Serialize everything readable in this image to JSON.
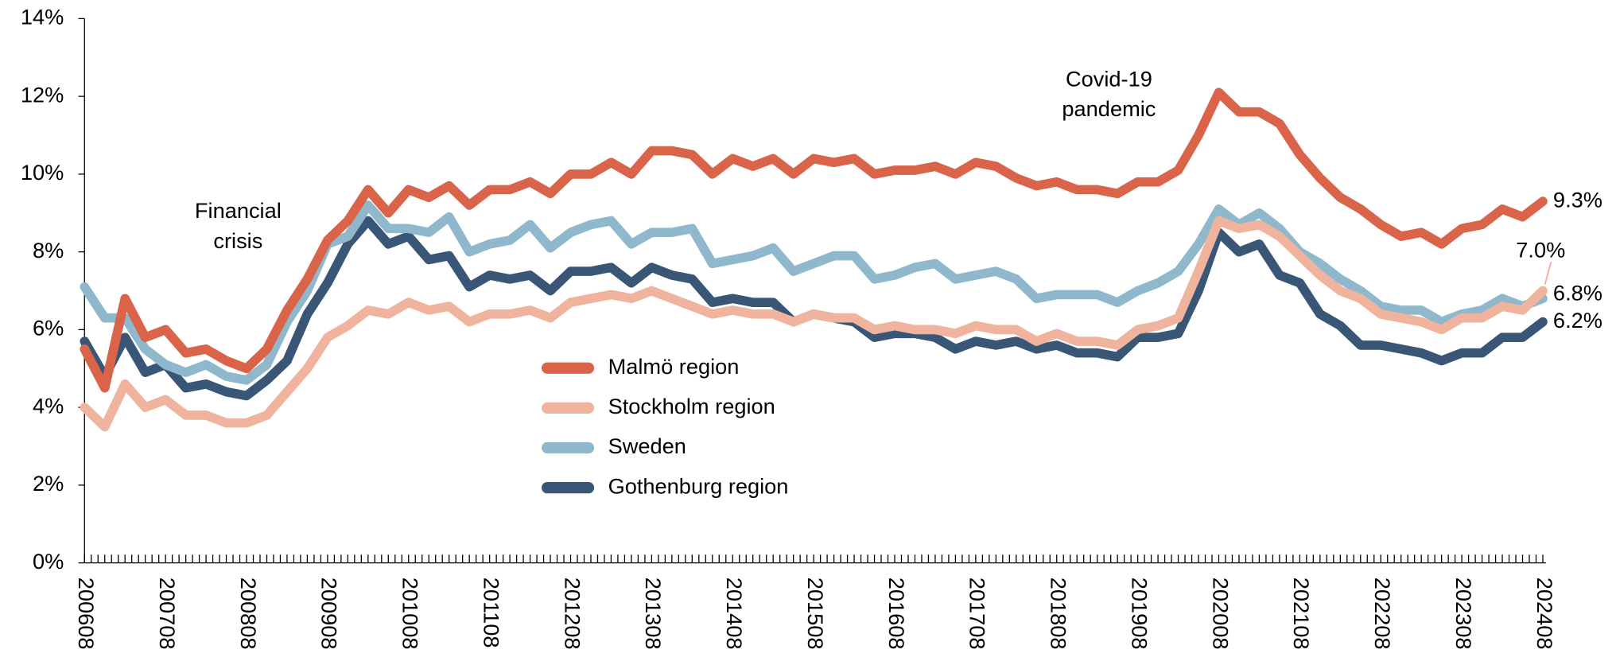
{
  "chart_data": {
    "type": "line",
    "categories": [
      "200608",
      null,
      null,
      null,
      "200708",
      null,
      null,
      null,
      "200808",
      null,
      null,
      null,
      "200908",
      null,
      null,
      null,
      "201008",
      null,
      null,
      null,
      "201108",
      null,
      null,
      null,
      "201208",
      null,
      null,
      null,
      "201308",
      null,
      null,
      null,
      "201408",
      null,
      null,
      null,
      "201508",
      null,
      null,
      null,
      "201608",
      null,
      null,
      null,
      "201708",
      null,
      null,
      null,
      "201808",
      null,
      null,
      null,
      "201908",
      null,
      null,
      null,
      "202008",
      null,
      null,
      null,
      "202108",
      null,
      null,
      null,
      "202208",
      null,
      null,
      null,
      "202308",
      null,
      null,
      null,
      "202408"
    ],
    "series": [
      {
        "name": "Malmö region",
        "color": "#d9644a",
        "values": [
          5.5,
          4.5,
          6.8,
          5.8,
          6.0,
          5.4,
          5.5,
          5.2,
          5.0,
          5.5,
          6.5,
          7.3,
          8.3,
          8.8,
          9.6,
          9.0,
          9.6,
          9.4,
          9.7,
          9.2,
          9.6,
          9.6,
          9.8,
          9.5,
          10.0,
          10.0,
          10.3,
          10.0,
          10.6,
          10.6,
          10.5,
          10.0,
          10.4,
          10.2,
          10.4,
          10.0,
          10.4,
          10.3,
          10.4,
          10.0,
          10.1,
          10.1,
          10.2,
          10.0,
          10.3,
          10.2,
          9.9,
          9.7,
          9.8,
          9.6,
          9.6,
          9.5,
          9.8,
          9.8,
          10.1,
          11.0,
          12.1,
          11.6,
          11.6,
          11.3,
          10.5,
          9.9,
          9.4,
          9.1,
          8.7,
          8.4,
          8.5,
          8.2,
          8.6,
          8.7,
          9.1,
          8.9,
          9.3
        ],
        "value_labels": [
          null,
          null,
          null,
          null,
          null,
          null,
          null,
          null,
          null,
          null,
          null,
          null,
          null,
          null,
          null,
          null,
          null,
          null,
          null,
          null,
          null,
          null,
          null,
          null,
          null,
          null,
          null,
          null,
          null,
          null,
          null,
          null,
          null,
          null,
          null,
          null,
          null,
          null,
          null,
          null,
          null,
          null,
          null,
          null,
          null,
          null,
          null,
          null,
          null,
          null,
          null,
          null,
          null,
          null,
          null,
          null,
          null,
          null,
          null,
          null,
          null,
          null,
          null,
          null,
          null,
          null,
          null,
          null,
          null,
          null,
          null,
          null,
          "9.3%"
        ]
      },
      {
        "name": "Stockholm region",
        "color": "#f0b49e",
        "values": [
          4.0,
          3.5,
          4.6,
          4.0,
          4.2,
          3.8,
          3.8,
          3.6,
          3.6,
          3.8,
          4.4,
          5.0,
          5.8,
          6.1,
          6.5,
          6.4,
          6.7,
          6.5,
          6.6,
          6.2,
          6.4,
          6.4,
          6.5,
          6.3,
          6.7,
          6.8,
          6.9,
          6.8,
          7.0,
          6.8,
          6.6,
          6.4,
          6.5,
          6.4,
          6.4,
          6.2,
          6.4,
          6.3,
          6.3,
          6.0,
          6.1,
          6.0,
          6.0,
          5.9,
          6.1,
          6.0,
          6.0,
          5.7,
          5.9,
          5.7,
          5.7,
          5.6,
          6.0,
          6.1,
          6.3,
          7.5,
          8.8,
          8.6,
          8.7,
          8.4,
          7.9,
          7.4,
          7.0,
          6.8,
          6.4,
          6.3,
          6.2,
          6.0,
          6.3,
          6.3,
          6.6,
          6.5,
          7.0
        ],
        "value_labels": [
          null,
          null,
          null,
          null,
          null,
          null,
          null,
          null,
          null,
          null,
          null,
          null,
          null,
          null,
          null,
          null,
          null,
          null,
          null,
          null,
          null,
          null,
          null,
          null,
          null,
          null,
          null,
          null,
          null,
          null,
          null,
          null,
          null,
          null,
          null,
          null,
          null,
          null,
          null,
          null,
          null,
          null,
          null,
          null,
          null,
          null,
          null,
          null,
          null,
          null,
          null,
          null,
          null,
          null,
          null,
          null,
          null,
          null,
          null,
          null,
          null,
          null,
          null,
          null,
          null,
          null,
          null,
          null,
          null,
          null,
          null,
          null,
          "7.0%"
        ]
      },
      {
        "name": "Sweden",
        "color": "#8fb8cc",
        "values": [
          7.1,
          6.3,
          6.3,
          5.5,
          5.1,
          4.9,
          5.1,
          4.8,
          4.7,
          5.1,
          6.2,
          7.0,
          8.2,
          8.4,
          9.2,
          8.6,
          8.6,
          8.5,
          8.9,
          8.0,
          8.2,
          8.3,
          8.7,
          8.1,
          8.5,
          8.7,
          8.8,
          8.2,
          8.5,
          8.5,
          8.6,
          7.7,
          7.8,
          7.9,
          8.1,
          7.5,
          7.7,
          7.9,
          7.9,
          7.3,
          7.4,
          7.6,
          7.7,
          7.3,
          7.4,
          7.5,
          7.3,
          6.8,
          6.9,
          6.9,
          6.9,
          6.7,
          7.0,
          7.2,
          7.5,
          8.2,
          9.1,
          8.7,
          9.0,
          8.6,
          8.0,
          7.7,
          7.3,
          7.0,
          6.6,
          6.5,
          6.5,
          6.2,
          6.4,
          6.5,
          6.8,
          6.6,
          6.8
        ],
        "value_labels": [
          null,
          null,
          null,
          null,
          null,
          null,
          null,
          null,
          null,
          null,
          null,
          null,
          null,
          null,
          null,
          null,
          null,
          null,
          null,
          null,
          null,
          null,
          null,
          null,
          null,
          null,
          null,
          null,
          null,
          null,
          null,
          null,
          null,
          null,
          null,
          null,
          null,
          null,
          null,
          null,
          null,
          null,
          null,
          null,
          null,
          null,
          null,
          null,
          null,
          null,
          null,
          null,
          null,
          null,
          null,
          null,
          null,
          null,
          null,
          null,
          null,
          null,
          null,
          null,
          null,
          null,
          null,
          null,
          null,
          null,
          null,
          null,
          "6.8%"
        ]
      },
      {
        "name": "Gothenburg region",
        "color": "#3a5677",
        "values": [
          5.7,
          4.8,
          5.8,
          4.9,
          5.1,
          4.5,
          4.6,
          4.4,
          4.3,
          4.7,
          5.2,
          6.4,
          7.2,
          8.2,
          8.8,
          8.2,
          8.4,
          7.8,
          7.9,
          7.1,
          7.4,
          7.3,
          7.4,
          7.0,
          7.5,
          7.5,
          7.6,
          7.2,
          7.6,
          7.4,
          7.3,
          6.7,
          6.8,
          6.7,
          6.7,
          6.2,
          6.4,
          6.3,
          6.2,
          5.8,
          5.9,
          5.9,
          5.8,
          5.5,
          5.7,
          5.6,
          5.7,
          5.5,
          5.6,
          5.4,
          5.4,
          5.3,
          5.8,
          5.8,
          5.9,
          7.0,
          8.5,
          8.0,
          8.2,
          7.4,
          7.2,
          6.4,
          6.1,
          5.6,
          5.6,
          5.5,
          5.4,
          5.2,
          5.4,
          5.4,
          5.8,
          5.8,
          6.2
        ],
        "value_labels": [
          null,
          null,
          null,
          null,
          null,
          null,
          null,
          null,
          null,
          null,
          null,
          null,
          null,
          null,
          null,
          null,
          null,
          null,
          null,
          null,
          null,
          null,
          null,
          null,
          null,
          null,
          null,
          null,
          null,
          null,
          null,
          null,
          null,
          null,
          null,
          null,
          null,
          null,
          null,
          null,
          null,
          null,
          null,
          null,
          null,
          null,
          null,
          null,
          null,
          null,
          null,
          null,
          null,
          null,
          null,
          null,
          null,
          null,
          null,
          null,
          null,
          null,
          null,
          null,
          null,
          null,
          null,
          null,
          null,
          null,
          null,
          null,
          "6.2%"
        ]
      }
    ],
    "ylim": [
      0,
      14
    ],
    "yticks": [
      {
        "value": 0,
        "label": "0%"
      },
      {
        "value": 2,
        "label": "2%"
      },
      {
        "value": 4,
        "label": "4%"
      },
      {
        "value": 6,
        "label": "6%"
      },
      {
        "value": 8,
        "label": "8%"
      },
      {
        "value": 10,
        "label": "10%"
      },
      {
        "value": 12,
        "label": "12%"
      },
      {
        "value": 14,
        "label": "14%"
      }
    ],
    "grid": false,
    "legend": "center",
    "annotations": [
      [
        "Financial",
        "crisis"
      ],
      [
        "Covid-19",
        "pandemic"
      ]
    ]
  }
}
